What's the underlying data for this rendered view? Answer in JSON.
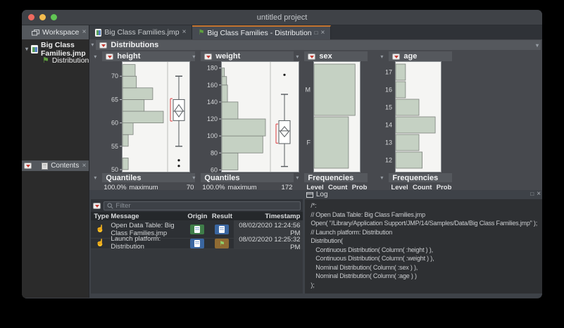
{
  "window": {
    "title": "untitled project"
  },
  "colors": {
    "accent_orange": "#c4742f",
    "histogram_fill": "#c5d1c3",
    "histogram_stroke": "#7b817b",
    "bracket_red": "#e0595c",
    "plot_bg": "#f5f5f3",
    "traffic_close": "#ee6a5f",
    "traffic_min": "#f5bd4f",
    "traffic_zoom": "#61c554",
    "badge_green": "#3f7d49",
    "badge_blue": "#3a66a0",
    "badge_brown": "#8f6b33"
  },
  "icons": {
    "workspace": "windows-stack",
    "data_table": "jmp-data-table-page",
    "platform": "green-flag",
    "red_triangle": "red-triangle-menu",
    "disclosure": "triangle-down",
    "search": "magnifier",
    "close": "x",
    "restore": "square",
    "log": "log-window",
    "action": "pointing-hand"
  },
  "sidebar": {
    "workspace_title": "Workspace",
    "tree": {
      "root": "Big Class Families.jmp",
      "child": "Distribution"
    },
    "contents_title": "Contents"
  },
  "tabs": [
    {
      "label": "Big Class Families.jmp"
    },
    {
      "label": "Big Class Families - Distribution"
    }
  ],
  "report": {
    "title": "Distributions",
    "sections": [
      "height",
      "weight",
      "sex",
      "age"
    ]
  },
  "quantiles": [
    {
      "title": "Quantiles",
      "pct": "100.0%",
      "stat": "maximum",
      "value": "70"
    },
    {
      "title": "Quantiles",
      "pct": "100.0%",
      "stat": "maximum",
      "value": "172"
    }
  ],
  "frequencies": {
    "title": "Frequencies",
    "columns": [
      "Level",
      "Count",
      "Prob"
    ]
  },
  "log": {
    "title": "Log",
    "filter_placeholder": "Filter",
    "table": {
      "columns": [
        "Type",
        "Message",
        "Origin",
        "Result",
        "Timestamp"
      ],
      "rows": [
        {
          "message": "Open Data Table: Big Class Families.jmp",
          "origin_icon": "data-table-green",
          "result_icon": "data-table-blue",
          "timestamp": "08/02/2020 12:24:56 PM"
        },
        {
          "message": "Launch platform: Distribution",
          "origin_icon": "data-table-blue",
          "result_icon": "report-flag-brown",
          "timestamp": "08/02/2020 12:25:32 PM"
        }
      ]
    },
    "script": {
      "lines": [
        "/*:",
        "// Open Data Table: Big Class Families.jmp",
        "Open( \"/Library/Application Support/JMP/14/Samples/Data/Big Class Families.jmp\" );",
        "",
        "// Launch platform: Distribution",
        "Distribution(",
        "   Continuous Distribution( Column( :height ) ),",
        "   Continuous Distribution( Column( :weight ) ),",
        "   Nominal Distribution( Column( :sex ) ),",
        "   Nominal Distribution( Column( :age ) )",
        ");",
        ""
      ],
      "highlighted_line": 11
    }
  },
  "chart_data": [
    {
      "type": "histogram",
      "title": "height",
      "orientation": "horizontal",
      "axis": {
        "min": 49.4,
        "max": 73.2,
        "ticks": [
          50,
          55,
          60,
          65,
          70
        ]
      },
      "bins": [
        {
          "from": 50.0,
          "to": 52.5,
          "f": 0.14
        },
        {
          "from": 55.0,
          "to": 57.5,
          "f": 0.14
        },
        {
          "from": 57.5,
          "to": 60.0,
          "f": 0.26
        },
        {
          "from": 60.0,
          "to": 62.5,
          "f": 1.0
        },
        {
          "from": 62.5,
          "to": 65.0,
          "f": 0.53
        },
        {
          "from": 65.0,
          "to": 67.5,
          "f": 0.74
        },
        {
          "from": 67.5,
          "to": 70.0,
          "f": 0.34
        },
        {
          "from": 70.0,
          "to": 72.5,
          "f": 0.31
        }
      ],
      "box": {
        "low": 55,
        "q1": 60.5,
        "median": 62.5,
        "q3": 65.0,
        "high": 70,
        "mean_low": 61.3,
        "mean_high": 63.9,
        "bracket": [
          60.4,
          65.2
        ],
        "outliers": [
          52.0,
          50.8
        ]
      },
      "quantile": {
        "pct": "100.0%",
        "stat": "maximum",
        "value": 70
      }
    },
    {
      "type": "histogram",
      "title": "weight",
      "orientation": "horizontal",
      "axis": {
        "min": 57,
        "max": 188,
        "ticks": [
          60,
          80,
          100,
          120,
          140,
          160,
          180
        ]
      },
      "bins": [
        {
          "from": 60,
          "to": 80,
          "f": 0.37
        },
        {
          "from": 80,
          "to": 100,
          "f": 0.94
        },
        {
          "from": 100,
          "to": 120,
          "f": 1.0
        },
        {
          "from": 120,
          "to": 140,
          "f": 0.37
        },
        {
          "from": 140,
          "to": 160,
          "f": 0.13
        },
        {
          "from": 160,
          "to": 170,
          "f": 0.11
        },
        {
          "from": 170,
          "to": 180,
          "f": 0.06
        }
      ],
      "box": {
        "low": 64,
        "q1": 91,
        "median": 106,
        "q3": 118,
        "high": 149,
        "mean_low": 99,
        "mean_high": 111,
        "bracket": [
          91.5,
          114
        ],
        "outliers": [
          172
        ]
      },
      "quantile": {
        "pct": "100.0%",
        "stat": "maximum",
        "value": 172
      }
    },
    {
      "type": "bar",
      "title": "sex",
      "orientation": "horizontal",
      "bars": [
        {
          "label": "M",
          "f": 0.87
        },
        {
          "label": "F",
          "f": 0.73
        }
      ],
      "frequencies_columns": [
        "Level",
        "Count",
        "Prob"
      ]
    },
    {
      "type": "bar",
      "title": "age",
      "orientation": "horizontal",
      "bars": [
        {
          "label": "17",
          "f": 0.21
        },
        {
          "label": "16",
          "f": 0.21
        },
        {
          "label": "15",
          "f": 0.5
        },
        {
          "label": "14",
          "f": 0.85
        },
        {
          "label": "13",
          "f": 0.5
        },
        {
          "label": "12",
          "f": 0.57
        }
      ],
      "frequencies_columns": [
        "Level",
        "Count",
        "Prob"
      ]
    }
  ]
}
